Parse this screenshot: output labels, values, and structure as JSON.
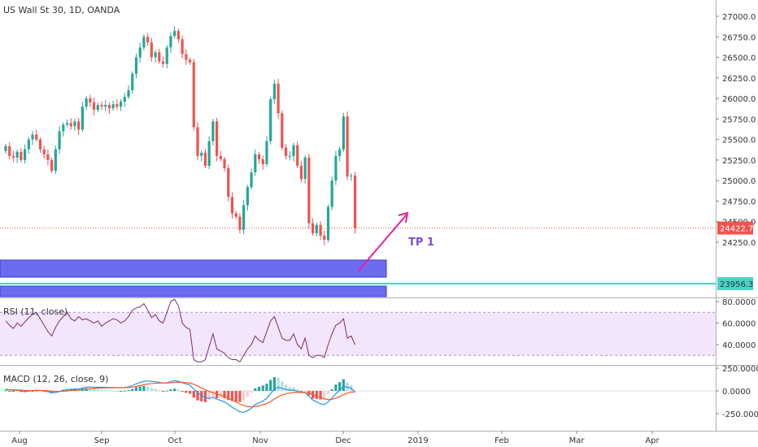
{
  "header": {
    "title": "US Wall St 30, 1D, OANDA"
  },
  "rsi_label": "RSI (11, close)",
  "macd_label": "MACD (12, 26, close, 9)",
  "annotation": {
    "tp_label": "TP 1"
  },
  "price_tags": {
    "current": "24422.7",
    "line": "23956.3"
  },
  "colors": {
    "up": "#26a69a",
    "down": "#ef5350",
    "zone": "#6c6cf0",
    "rsi_band": "#f3e5fb",
    "rsi_line": "#7b2d6e",
    "macd_line": "#2196f3",
    "signal_line": "#ff5722",
    "arrow": "#e91e9b",
    "hline": "#4dd0c9"
  },
  "chart_data": [
    {
      "type": "candlestick",
      "title": "US Wall St 30, 1D, OANDA",
      "ylim": [
        24000,
        27100
      ],
      "yticks": [
        "27000.0",
        "26750.0",
        "26500.0",
        "26250.0",
        "26000.0",
        "25750.0",
        "25500.0",
        "25250.0",
        "25000.0",
        "24750.0",
        "24500.0",
        "24250.0"
      ],
      "xticks": [
        "Aug",
        "Sep",
        "Oct",
        "Nov",
        "Dec",
        "2019",
        "Feb",
        "Mar",
        "Apr"
      ],
      "closes": [
        25420,
        25300,
        25280,
        25350,
        25250,
        25380,
        25500,
        25560,
        25500,
        25380,
        25320,
        25250,
        25120,
        25380,
        25600,
        25680,
        25700,
        25660,
        25720,
        25620,
        25900,
        26000,
        25950,
        25860,
        25920,
        25900,
        25920,
        25880,
        25930,
        25900,
        25960,
        26020,
        26100,
        26300,
        26500,
        26620,
        26750,
        26680,
        26500,
        26560,
        26450,
        26420,
        26620,
        26760,
        26820,
        26720,
        26540,
        26470,
        26440,
        25650,
        25300,
        25340,
        25180,
        25480,
        25720,
        25300,
        25260,
        25150,
        24800,
        24600,
        24560,
        24400,
        24700,
        24920,
        25100,
        25320,
        25260,
        25200,
        25480,
        25990,
        26180,
        25820,
        25400,
        25300,
        25300,
        25430,
        25180,
        25020,
        25280,
        24480,
        24360,
        24460,
        24330,
        24280,
        24680,
        25000,
        25300,
        25380,
        25780,
        25050,
        25060,
        24420
      ],
      "last_close": 24422.7,
      "horizontal_line": 23956.3
    },
    {
      "type": "line",
      "title": "RSI (11, close)",
      "ylim": [
        20,
        85
      ],
      "yticks": [
        "80.0000",
        "60.0000",
        "40.0000"
      ],
      "band": [
        30,
        70
      ],
      "values": [
        62,
        58,
        55,
        60,
        57,
        61,
        65,
        68,
        70,
        64,
        58,
        52,
        48,
        56,
        62,
        66,
        70,
        64,
        62,
        66,
        63,
        64,
        62,
        60,
        62,
        57,
        60,
        62,
        64,
        63,
        60,
        62,
        66,
        72,
        74,
        75,
        78,
        72,
        65,
        68,
        62,
        60,
        70,
        80,
        82,
        76,
        60,
        56,
        54,
        26,
        24,
        24,
        26,
        38,
        50,
        36,
        34,
        32,
        28,
        26,
        26,
        24,
        30,
        36,
        40,
        48,
        44,
        42,
        52,
        62,
        66,
        56,
        46,
        44,
        44,
        50,
        40,
        36,
        46,
        30,
        28,
        30,
        30,
        28,
        40,
        50,
        58,
        60,
        64,
        46,
        48,
        40
      ]
    },
    {
      "type": "macd",
      "title": "MACD (12, 26, close, 9)",
      "ylim": [
        -300,
        280
      ],
      "yticks": [
        "250.0000",
        "0.0000",
        "-250.0000"
      ],
      "macd": [
        20,
        12,
        8,
        6,
        0,
        -4,
        -2,
        4,
        8,
        6,
        0,
        -8,
        -20,
        -18,
        -6,
        6,
        14,
        18,
        22,
        20,
        30,
        40,
        42,
        40,
        42,
        40,
        40,
        38,
        38,
        36,
        36,
        38,
        44,
        58,
        78,
        92,
        106,
        110,
        104,
        102,
        94,
        86,
        90,
        102,
        112,
        106,
        90,
        76,
        64,
        20,
        -20,
        -48,
        -76,
        -80,
        -70,
        -90,
        -104,
        -120,
        -150,
        -180,
        -204,
        -230,
        -236,
        -218,
        -190,
        -150,
        -130,
        -110,
        -82,
        -30,
        20,
        40,
        30,
        16,
        8,
        10,
        -4,
        -20,
        -20,
        -60,
        -100,
        -120,
        -140,
        -150,
        -120,
        -80,
        -30,
        6,
        52,
        40,
        30,
        -10
      ],
      "signal": [
        14,
        13,
        12,
        10,
        8,
        6,
        4,
        4,
        5,
        5,
        4,
        1,
        -3,
        -6,
        -6,
        -4,
        0,
        4,
        8,
        10,
        14,
        19,
        23,
        27,
        30,
        32,
        34,
        35,
        36,
        36,
        36,
        36,
        38,
        42,
        49,
        58,
        67,
        76,
        81,
        85,
        87,
        87,
        87,
        90,
        94,
        96,
        95,
        91,
        86,
        73,
        54,
        34,
        12,
        -6,
        -19,
        -33,
        -48,
        -62,
        -80,
        -100,
        -121,
        -143,
        -161,
        -172,
        -176,
        -171,
        -163,
        -152,
        -138,
        -116,
        -89,
        -63,
        -44,
        -32,
        -24,
        -17,
        -15,
        -16,
        -17,
        -25,
        -40,
        -56,
        -73,
        -88,
        -95,
        -92,
        -80,
        -63,
        -40,
        -24,
        -13,
        -12
      ]
    }
  ]
}
